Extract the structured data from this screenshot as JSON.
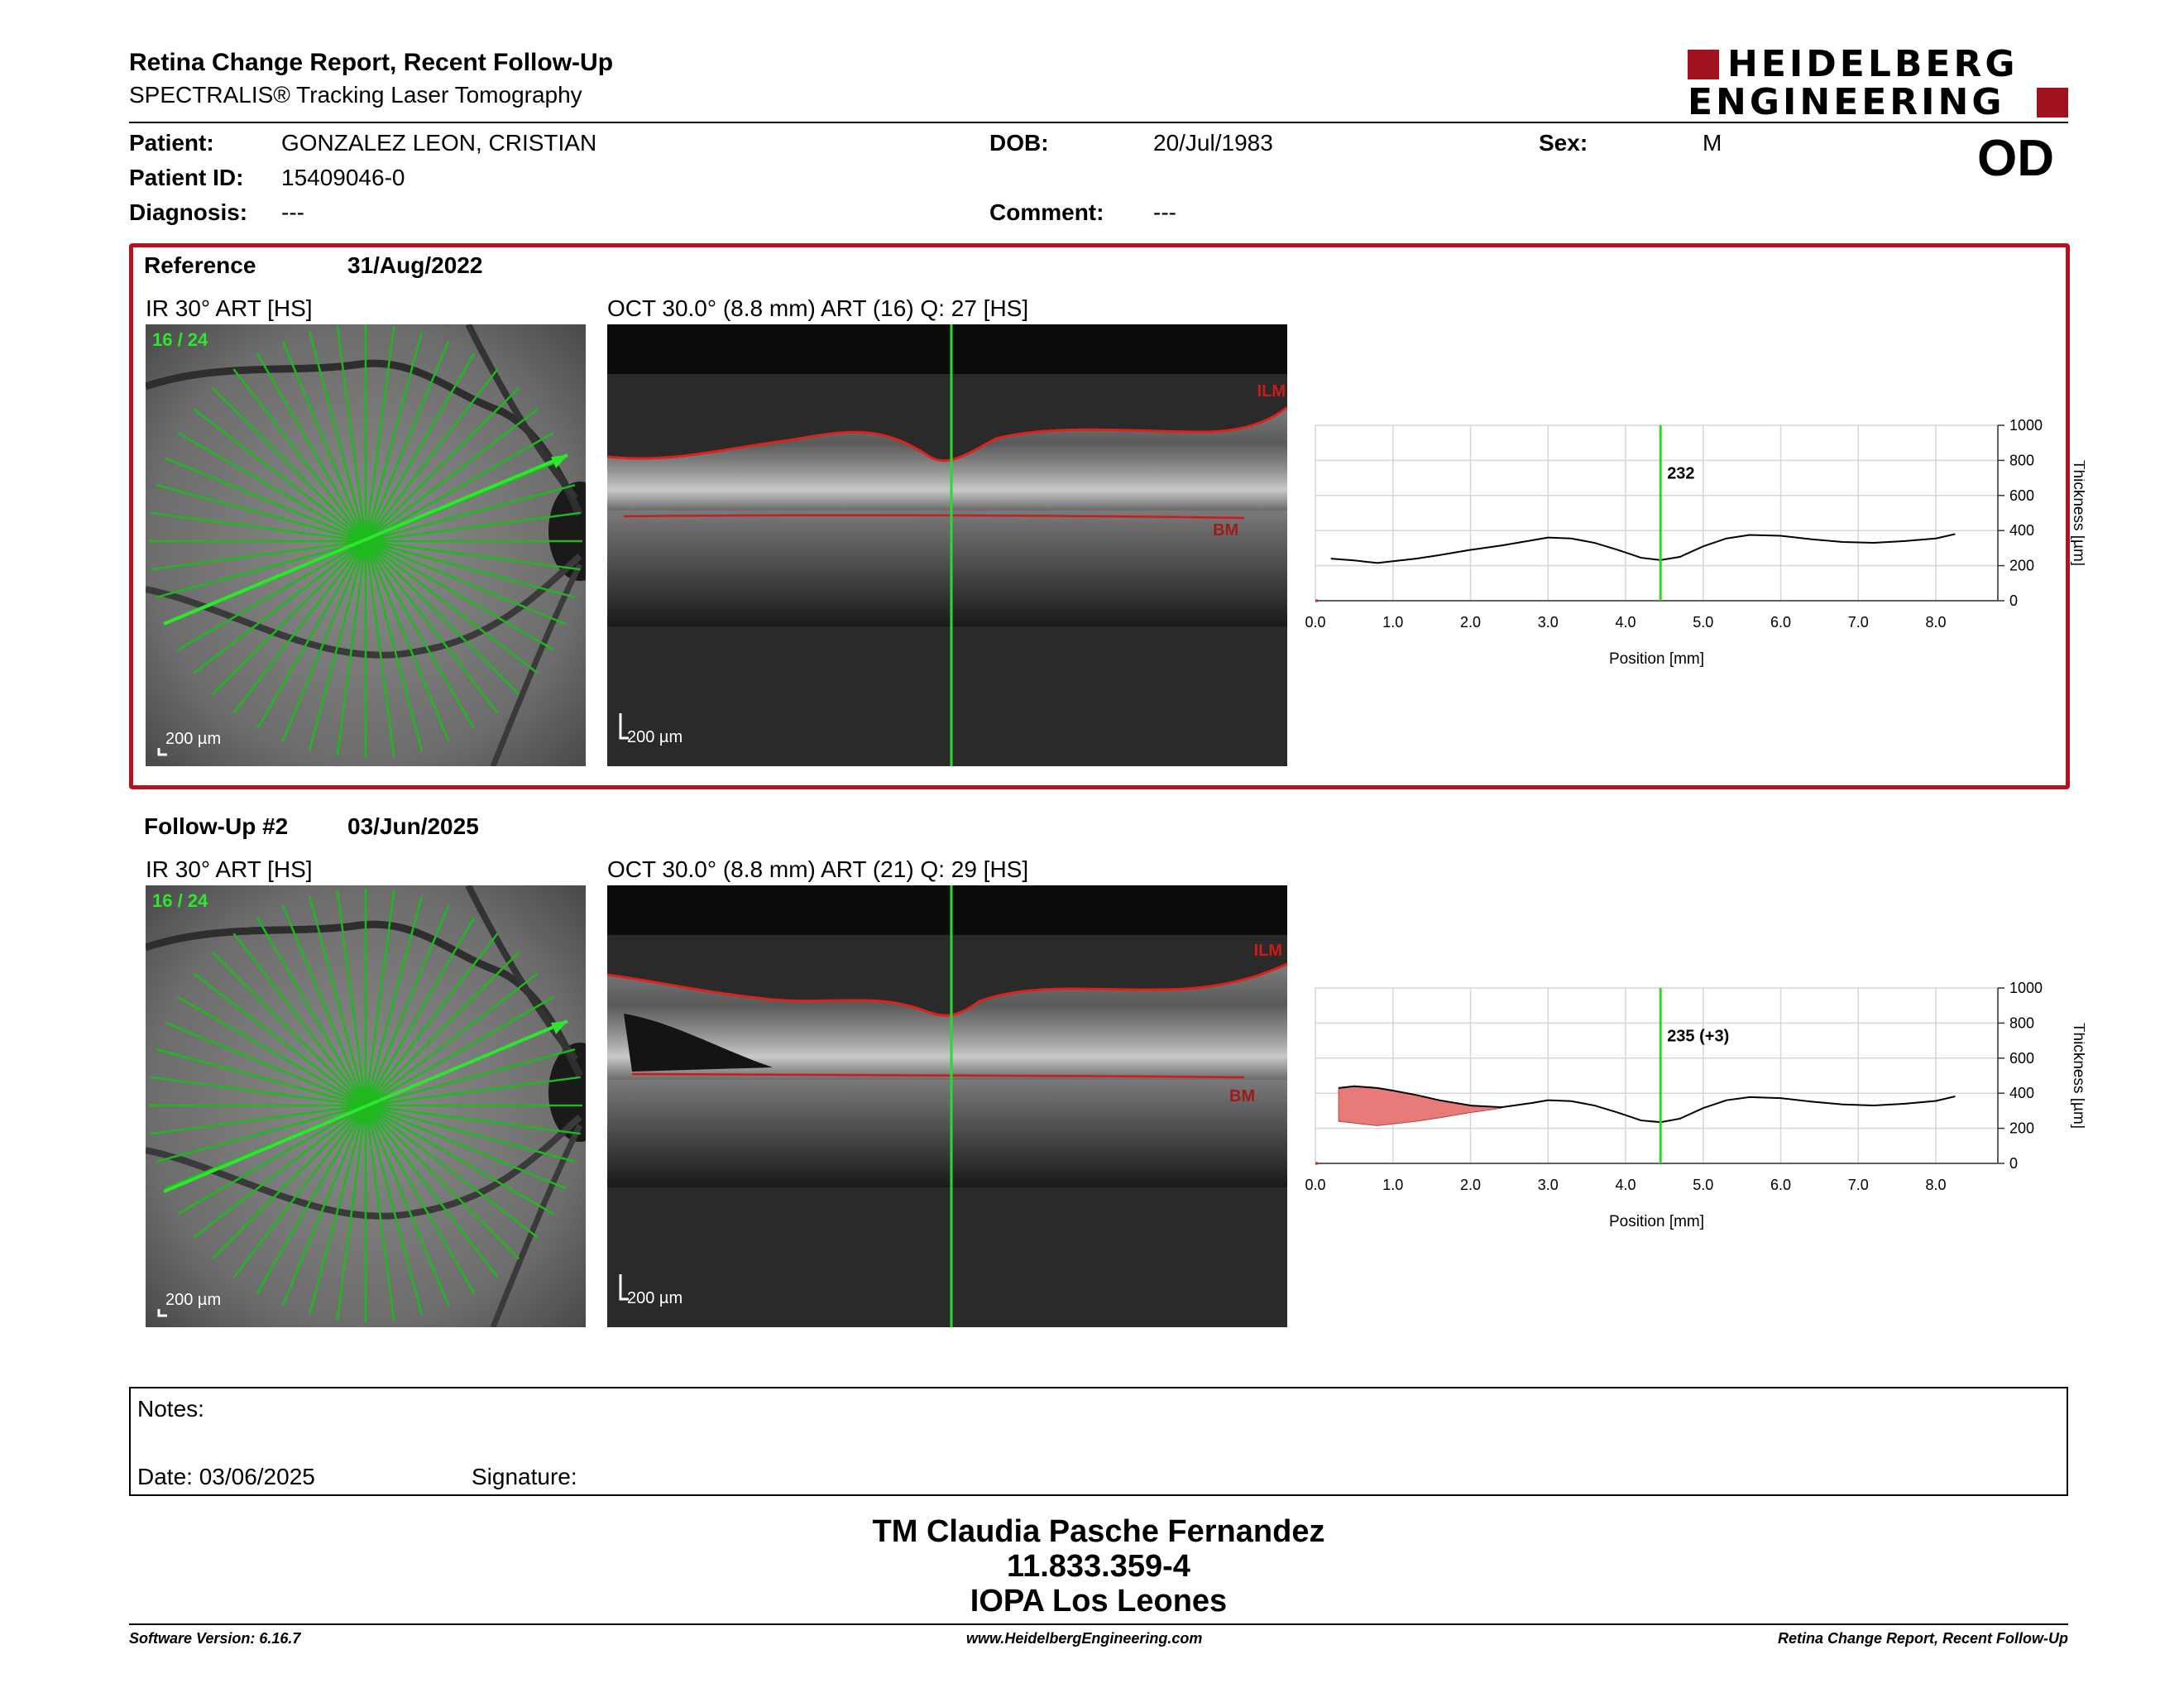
{
  "header": {
    "title": "Retina Change Report, Recent Follow-Up",
    "subtitle": "SPECTRALIS® Tracking Laser Tomography",
    "logo_line1": "HEIDELBERG",
    "logo_line2": "ENGINEERING",
    "eye": "OD"
  },
  "patient": {
    "name_label": "Patient:",
    "name": "GONZALEZ LEON, CRISTIAN",
    "id_label": "Patient ID:",
    "id": "15409046-0",
    "diagnosis_label": "Diagnosis:",
    "diagnosis": "---",
    "dob_label": "DOB:",
    "dob": "20/Jul/1983",
    "comment_label": "Comment:",
    "comment": "---",
    "sex_label": "Sex:",
    "sex": "M"
  },
  "reference": {
    "label": "Reference",
    "date": "31/Aug/2022",
    "ir_title": "IR 30° ART [HS]",
    "ir_counter": "16 / 24",
    "ir_scale": "200 µm",
    "oct_title": "OCT 30.0° (8.8 mm) ART (16) Q: 27 [HS]",
    "oct_scale": "200 µm",
    "ilm": "ILM",
    "bm": "BM",
    "marker_value": "232"
  },
  "followup": {
    "label": "Follow-Up #2",
    "date": "03/Jun/2025",
    "ir_title": "IR 30° ART [HS]",
    "ir_counter": "16 / 24",
    "ir_scale": "200 µm",
    "oct_title": "OCT 30.0° (8.8 mm) ART (21) Q: 29 [HS]",
    "oct_scale": "200 µm",
    "ilm": "ILM",
    "bm": "BM",
    "marker_value": "235 (+3)"
  },
  "chart_data": [
    {
      "type": "line",
      "title": "",
      "xlabel": "Position [mm]",
      "ylabel": "Thickness [µm]",
      "xlim": [
        0,
        8.8
      ],
      "ylim": [
        0,
        1000
      ],
      "xticks": [
        "0.0",
        "1.0",
        "2.0",
        "3.0",
        "4.0",
        "5.0",
        "6.0",
        "7.0",
        "8.0"
      ],
      "yticks": [
        "0",
        "200",
        "400",
        "600",
        "800",
        "1000"
      ],
      "marker_x": 4.45,
      "marker_label": "232",
      "series": [
        {
          "x": [
            0.2,
            0.5,
            0.8,
            1.0,
            1.3,
            1.6,
            2.0,
            2.4,
            2.8,
            3.0,
            3.3,
            3.6,
            3.9,
            4.2,
            4.45,
            4.7,
            5.0,
            5.3,
            5.6,
            6.0,
            6.4,
            6.8,
            7.2,
            7.6,
            8.0,
            8.25
          ],
          "values": [
            240,
            230,
            215,
            225,
            240,
            260,
            290,
            315,
            345,
            360,
            355,
            330,
            290,
            245,
            232,
            250,
            310,
            355,
            375,
            370,
            350,
            335,
            330,
            340,
            355,
            380
          ]
        }
      ]
    },
    {
      "type": "line",
      "title": "",
      "xlabel": "Position [mm]",
      "ylabel": "Thickness [µm]",
      "xlim": [
        0,
        8.8
      ],
      "ylim": [
        0,
        1000
      ],
      "xticks": [
        "0.0",
        "1.0",
        "2.0",
        "3.0",
        "4.0",
        "5.0",
        "6.0",
        "7.0",
        "8.0"
      ],
      "yticks": [
        "0",
        "200",
        "400",
        "600",
        "800",
        "1000"
      ],
      "marker_x": 4.45,
      "marker_label": "235 (+3)",
      "series": [
        {
          "x": [
            0.3,
            0.5,
            0.8,
            1.0,
            1.3,
            1.6,
            2.0,
            2.4,
            2.8,
            3.0,
            3.3,
            3.6,
            3.9,
            4.2,
            4.45,
            4.7,
            5.0,
            5.3,
            5.6,
            6.0,
            6.4,
            6.8,
            7.2,
            7.6,
            8.0,
            8.25
          ],
          "values": [
            430,
            440,
            430,
            415,
            390,
            360,
            330,
            320,
            345,
            360,
            355,
            330,
            290,
            245,
            235,
            255,
            315,
            360,
            378,
            372,
            352,
            336,
            330,
            340,
            356,
            382
          ]
        }
      ],
      "reference_series": {
        "x": [
          0.3,
          0.5,
          0.8,
          1.0,
          1.3,
          1.6,
          2.0,
          2.4
        ],
        "values": [
          240,
          230,
          215,
          225,
          240,
          260,
          290,
          315
        ]
      }
    }
  ],
  "notes": {
    "label": "Notes:",
    "date_label": "Date: 03/06/2025",
    "signature_label": "Signature:"
  },
  "signature_block": {
    "line1": "TM Claudia Pasche Fernandez",
    "line2": "11.833.359-4",
    "line3": "IOPA Los Leones"
  },
  "footer": {
    "left": "Software Version: 6.16.7",
    "center": "www.HeidelbergEngineering.com",
    "right": "Retina Change Report, Recent Follow-Up"
  },
  "colors": {
    "brand_red": "#a0121e",
    "scan_green": "#2bd62b",
    "diff_fill": "#e87a7a"
  }
}
